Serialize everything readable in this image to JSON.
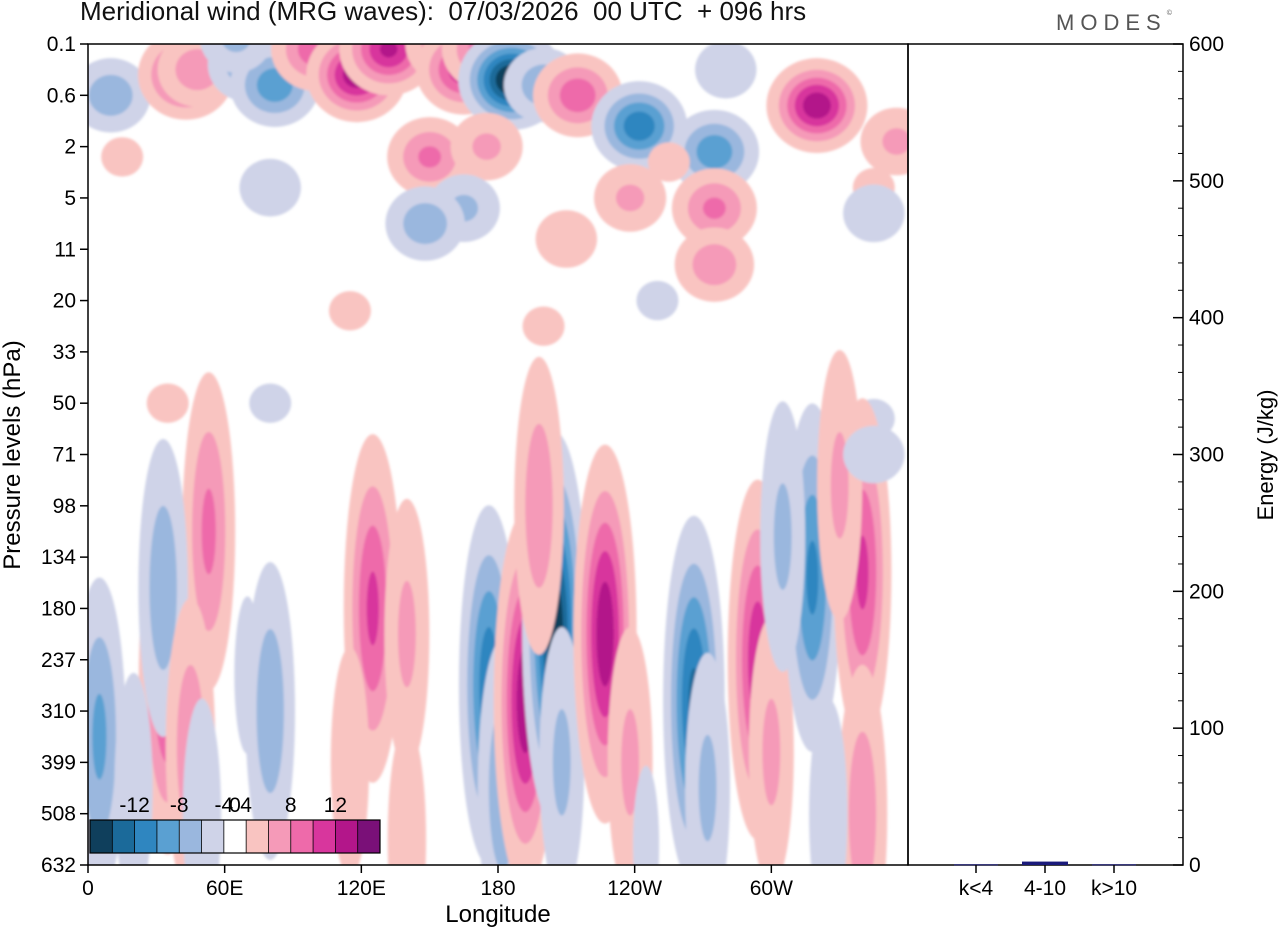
{
  "header": {
    "title": "Meridional wind (MRG waves):  07/03/2026  00 UTC  + 096 hrs",
    "logo": "MODES",
    "logo_mark": "©"
  },
  "chart_data": [
    {
      "type": "heatmap",
      "title": "Meridional wind (MRG waves)",
      "xlabel": "Longitude",
      "ylabel": "Pressure levels (hPa)",
      "x_ticks": [
        "0",
        "60E",
        "120E",
        "180",
        "120W",
        "60W"
      ],
      "x_tick_values": [
        0,
        60,
        120,
        180,
        240,
        300
      ],
      "xlim": [
        0,
        360
      ],
      "y_ticks": [
        "0.1",
        "0.6",
        "2",
        "5",
        "11",
        "20",
        "33",
        "50",
        "71",
        "98",
        "134",
        "180",
        "237",
        "310",
        "399",
        "508",
        "632"
      ],
      "y_scale": "level-index",
      "colorbar": {
        "labels": [
          "-12",
          "-8",
          "-4",
          "0",
          "4",
          "8",
          "12"
        ],
        "levels": [
          -14,
          -12,
          -10,
          -8,
          -6,
          -4,
          -2,
          2,
          4,
          6,
          8,
          10,
          12,
          14
        ],
        "colors": [
          "#0f3f5c",
          "#1b6a9a",
          "#2f86c0",
          "#5aa0d2",
          "#9ab7de",
          "#cfd3e8",
          "#ffffff",
          "#f9c4c1",
          "#f59ab8",
          "#ee6aaa",
          "#d8369d",
          "#b3168a",
          "#7a1078"
        ]
      },
      "anomalies": [
        {
          "lon": 10,
          "level": 1.0,
          "amp": -5
        },
        {
          "lon": 43,
          "level": 0.6,
          "amp": 9
        },
        {
          "lon": 48,
          "level": 0.5,
          "amp": 5
        },
        {
          "lon": 70,
          "level": 0.4,
          "amp": -5
        },
        {
          "lon": 82,
          "level": 0.8,
          "amp": -7
        },
        {
          "lon": 65,
          "level": -0.1,
          "amp": -4
        },
        {
          "lon": 100,
          "level": 0.1,
          "amp": 7
        },
        {
          "lon": 118,
          "level": 0.6,
          "amp": 11
        },
        {
          "lon": 132,
          "level": 0.1,
          "amp": 10
        },
        {
          "lon": 158,
          "level": 0.0,
          "amp": 6
        },
        {
          "lon": 165,
          "level": 0.5,
          "amp": 9
        },
        {
          "lon": 175,
          "level": 0.1,
          "amp": 7
        },
        {
          "lon": 186,
          "level": 0.7,
          "amp": -14
        },
        {
          "lon": 200,
          "level": 0.8,
          "amp": -5
        },
        {
          "lon": 215,
          "level": 1.0,
          "amp": 7
        },
        {
          "lon": 242,
          "level": 1.6,
          "amp": -9
        },
        {
          "lon": 275,
          "level": 2.1,
          "amp": -7
        },
        {
          "lon": 280,
          "level": 0.5,
          "amp": -3
        },
        {
          "lon": 320,
          "level": 1.2,
          "amp": 11
        },
        {
          "lon": 355,
          "level": 1.9,
          "amp": 4
        },
        {
          "lon": 150,
          "level": 2.2,
          "amp": 6
        },
        {
          "lon": 175,
          "level": 2.0,
          "amp": 4
        },
        {
          "lon": 165,
          "level": 3.2,
          "amp": -4
        },
        {
          "lon": 255,
          "level": 2.3,
          "amp": 2
        },
        {
          "lon": 210,
          "level": 3.8,
          "amp": 3
        },
        {
          "lon": 275,
          "level": 3.2,
          "amp": 6
        },
        {
          "lon": 238,
          "level": 3.0,
          "amp": 4
        },
        {
          "lon": 345,
          "level": 2.8,
          "amp": 2
        },
        {
          "lon": 148,
          "level": 3.5,
          "amp": -5
        },
        {
          "lon": 15,
          "level": 2.2,
          "amp": 2
        },
        {
          "lon": 275,
          "level": 4.3,
          "amp": 5
        },
        {
          "lon": 345,
          "level": 3.3,
          "amp": -3
        },
        {
          "lon": 80,
          "level": 2.8,
          "amp": -3
        },
        {
          "lon": 250,
          "level": 5.0,
          "amp": -2
        },
        {
          "lon": 200,
          "level": 5.5,
          "amp": 2
        },
        {
          "lon": 115,
          "level": 5.2,
          "amp": 2
        },
        {
          "lon": 35,
          "level": 7.0,
          "amp": 2
        },
        {
          "lon": 80,
          "level": 7.0,
          "amp": -2
        },
        {
          "lon": 345,
          "level": 7.3,
          "amp": -2
        },
        {
          "lon": 35,
          "level": 12.4,
          "amp": 8
        },
        {
          "lon": 53,
          "level": 9.5,
          "amp": 6
        },
        {
          "lon": 33,
          "level": 10.6,
          "amp": -5
        },
        {
          "lon": 45,
          "level": 13.7,
          "amp": 5
        },
        {
          "lon": 5,
          "level": 13.5,
          "amp": -6
        },
        {
          "lon": 20,
          "level": 14.5,
          "amp": -3
        },
        {
          "lon": 70,
          "level": 12.3,
          "amp": -2
        },
        {
          "lon": 80,
          "level": 13.0,
          "amp": -5
        },
        {
          "lon": 125,
          "level": 11.0,
          "amp": 8
        },
        {
          "lon": 115,
          "level": 14.0,
          "amp": 3
        },
        {
          "lon": 140,
          "level": 11.5,
          "amp": 4
        },
        {
          "lon": 176,
          "level": 12.5,
          "amp": -9
        },
        {
          "lon": 182,
          "level": 14.5,
          "amp": -5
        },
        {
          "lon": 192,
          "level": 12.8,
          "amp": 11
        },
        {
          "lon": 205,
          "level": 11.4,
          "amp": -13
        },
        {
          "lon": 208,
          "level": 14.0,
          "amp": -4
        },
        {
          "lon": 198,
          "level": 9.0,
          "amp": 5
        },
        {
          "lon": 227,
          "level": 11.5,
          "amp": 11
        },
        {
          "lon": 238,
          "level": 14.0,
          "amp": 4
        },
        {
          "lon": 266,
          "level": 12.8,
          "amp": -10
        },
        {
          "lon": 272,
          "level": 14.5,
          "amp": -4
        },
        {
          "lon": 294,
          "level": 12.0,
          "amp": 9
        },
        {
          "lon": 300,
          "level": 13.8,
          "amp": 4
        },
        {
          "lon": 318,
          "level": 10.4,
          "amp": -8
        },
        {
          "lon": 305,
          "level": 9.6,
          "amp": -4
        },
        {
          "lon": 340,
          "level": 10.3,
          "amp": 8
        },
        {
          "lon": 330,
          "level": 8.6,
          "amp": 4
        },
        {
          "lon": 345,
          "level": 8.0,
          "amp": -3
        },
        {
          "lon": 340,
          "level": 15.0,
          "amp": 5
        },
        {
          "lon": 325,
          "level": 15.0,
          "amp": -3
        },
        {
          "lon": 50,
          "level": 15.0,
          "amp": -3
        },
        {
          "lon": 140,
          "level": 15.5,
          "amp": 3
        },
        {
          "lon": 245,
          "level": 15.6,
          "amp": -2
        }
      ]
    },
    {
      "type": "bar",
      "categories": [
        "k<4",
        "4-10",
        "k>10"
      ],
      "values": [
        0.5,
        2.5,
        0.5
      ],
      "ylabel": "Energy (J/kg)",
      "ylim": [
        0,
        600
      ],
      "y_ticks": [
        "0",
        "100",
        "200",
        "300",
        "400",
        "500",
        "600"
      ],
      "colors": [
        "#1a1a7a",
        "#1a1a7a",
        "#1a1a7a"
      ]
    }
  ]
}
